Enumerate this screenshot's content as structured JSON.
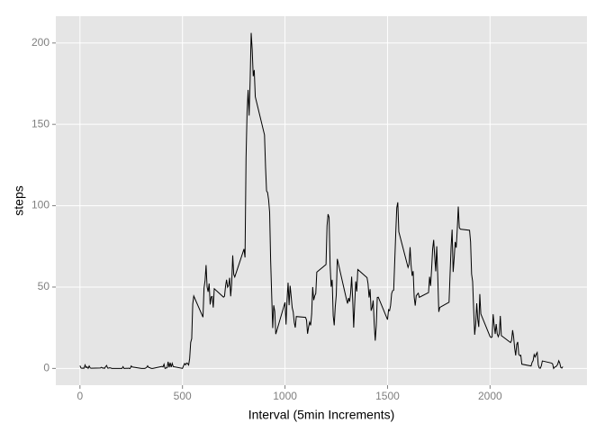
{
  "chart_data": {
    "type": "line",
    "x_label": "Interval (5min Increments)",
    "y_label": "steps",
    "x": [
      0,
      5,
      10,
      15,
      20,
      25,
      30,
      35,
      40,
      45,
      50,
      55,
      100,
      105,
      110,
      115,
      120,
      125,
      130,
      135,
      140,
      145,
      150,
      155,
      200,
      205,
      210,
      215,
      220,
      225,
      230,
      235,
      240,
      245,
      250,
      255,
      300,
      305,
      310,
      315,
      320,
      325,
      330,
      335,
      340,
      345,
      350,
      355,
      400,
      405,
      410,
      415,
      420,
      425,
      430,
      435,
      440,
      445,
      450,
      455,
      500,
      505,
      510,
      515,
      520,
      525,
      530,
      535,
      540,
      545,
      550,
      555,
      600,
      605,
      610,
      615,
      620,
      625,
      630,
      635,
      640,
      645,
      650,
      655,
      700,
      705,
      710,
      715,
      720,
      725,
      730,
      735,
      740,
      745,
      750,
      755,
      800,
      805,
      810,
      815,
      820,
      825,
      830,
      835,
      840,
      845,
      850,
      855,
      900,
      905,
      910,
      915,
      920,
      925,
      930,
      935,
      940,
      945,
      950,
      955,
      1000,
      1005,
      1010,
      1015,
      1020,
      1025,
      1030,
      1035,
      1040,
      1045,
      1050,
      1055,
      1100,
      1105,
      1110,
      1115,
      1120,
      1125,
      1130,
      1135,
      1140,
      1145,
      1150,
      1155,
      1200,
      1205,
      1210,
      1215,
      1220,
      1225,
      1230,
      1235,
      1240,
      1245,
      1250,
      1255,
      1300,
      1305,
      1310,
      1315,
      1320,
      1325,
      1330,
      1335,
      1340,
      1345,
      1350,
      1355,
      1400,
      1405,
      1410,
      1415,
      1420,
      1425,
      1430,
      1435,
      1440,
      1445,
      1450,
      1455,
      1500,
      1505,
      1510,
      1515,
      1520,
      1525,
      1530,
      1535,
      1540,
      1545,
      1550,
      1555,
      1600,
      1605,
      1610,
      1615,
      1620,
      1625,
      1630,
      1635,
      1640,
      1645,
      1650,
      1655,
      1700,
      1705,
      1710,
      1715,
      1720,
      1725,
      1730,
      1735,
      1740,
      1745,
      1750,
      1755,
      1800,
      1805,
      1810,
      1815,
      1820,
      1825,
      1830,
      1835,
      1840,
      1845,
      1850,
      1855,
      1900,
      1905,
      1910,
      1915,
      1920,
      1925,
      1930,
      1935,
      1940,
      1945,
      1950,
      1955,
      2000,
      2005,
      2010,
      2015,
      2020,
      2025,
      2030,
      2035,
      2040,
      2045,
      2050,
      2055,
      2100,
      2105,
      2110,
      2115,
      2120,
      2125,
      2130,
      2135,
      2140,
      2145,
      2150,
      2155,
      2200,
      2205,
      2210,
      2215,
      2220,
      2225,
      2230,
      2235,
      2240,
      2245,
      2250,
      2255,
      2300,
      2305,
      2310,
      2315,
      2320,
      2325,
      2330,
      2335,
      2340,
      2345,
      2350,
      2355
    ],
    "values": [
      1.7,
      0.3,
      0.1,
      0.2,
      0.1,
      2.1,
      0.5,
      0.9,
      0,
      1.5,
      0.3,
      0.1,
      0.3,
      0.7,
      0.2,
      0.3,
      0,
      1.1,
      1.8,
      0.2,
      0.2,
      0.4,
      0.3,
      0,
      0,
      0,
      1.1,
      0,
      0,
      0.1,
      0,
      0.2,
      0,
      0,
      1.5,
      0.9,
      0,
      0,
      0,
      0,
      0.2,
      0.6,
      1.6,
      0.6,
      0.5,
      0.1,
      0,
      0,
      1.2,
      0.9,
      2.6,
      0,
      0.3,
      0.4,
      4.1,
      0.7,
      3.5,
      0.8,
      3.1,
      1.1,
      0,
      1.6,
      3,
      2.2,
      3.3,
      3,
      2.1,
      6.1,
      16,
      18.3,
      39.5,
      44.5,
      31.5,
      49.3,
      53.8,
      63.5,
      50,
      47.1,
      52.2,
      39.3,
      44,
      44.2,
      37.4,
      49,
      43.8,
      44.4,
      50.5,
      54.5,
      49.9,
      51,
      55.7,
      44.3,
      52.3,
      69.5,
      57.8,
      56.2,
      73.4,
      68.2,
      129.4,
      157.5,
      171.2,
      155.4,
      177.3,
      206.2,
      195.9,
      179.6,
      183.4,
      167,
      143.5,
      124,
      109.1,
      108.1,
      103.7,
      96,
      66.2,
      45.2,
      24.8,
      38.8,
      35,
      21.1,
      40.6,
      27,
      42.4,
      52.7,
      38.9,
      50.8,
      44.3,
      37.4,
      34.7,
      28.3,
      25.1,
      31.9,
      31.4,
      29.7,
      21.3,
      25.5,
      28.4,
      26.5,
      33.4,
      50,
      42,
      44.6,
      46,
      59.2,
      63.9,
      87.7,
      94.8,
      92.8,
      63.4,
      50.2,
      54.5,
      32.4,
      26.5,
      37.7,
      45.1,
      67.3,
      42.3,
      39.9,
      43.3,
      41,
      46.2,
      56.4,
      42.8,
      25.1,
      40,
      53.5,
      47.3,
      60.8,
      55.8,
      52,
      43.6,
      48.7,
      35.5,
      37.5,
      41.8,
      27.5,
      17.1,
      26.1,
      43.6,
      43.8,
      30,
      36.1,
      35.5,
      38.8,
      46,
      47.8,
      48.1,
      65.3,
      82.9,
      98.7,
      102.1,
      84,
      62.1,
      64.1,
      74.5,
      63.2,
      56.9,
      59.8,
      43.9,
      38.6,
      44.7,
      45.5,
      46.2,
      43.7,
      46.6,
      56.3,
      50.7,
      61.2,
      73.4,
      79,
      68.9,
      59.7,
      75.1,
      56.5,
      34.8,
      37.5,
      40.7,
      58,
      74.7,
      85.3,
      59.3,
      67.8,
      77.7,
      74.2,
      85.3,
      99.5,
      86.6,
      85.6,
      84.9,
      77.8,
      58,
      53.4,
      36.3,
      20.7,
      27.4,
      40,
      30.2,
      25.5,
      45.7,
      33.5,
      19.6,
      19,
      19.3,
      33.3,
      26.8,
      21.2,
      27.3,
      21.3,
      19.5,
      21.3,
      32.3,
      20.2,
      15.9,
      17.2,
      23.5,
      19.2,
      12.5,
      8,
      14.7,
      16.3,
      8.7,
      7.8,
      8.1,
      2.6,
      1.5,
      3.7,
      4.8,
      8.5,
      7.1,
      8.7,
      9.8,
      2.2,
      0.3,
      0.1,
      1.6,
      4.6,
      3.3,
      2.8,
      0,
      0.8,
      1,
      1.6,
      2.6,
      4.7,
      3.3,
      0.6,
      0.2,
      1.1
    ],
    "color": "#000000",
    "xlim": [
      -117.75,
      2472.75
    ],
    "xticks": [
      0,
      500,
      1000,
      1500,
      2000
    ],
    "ylim": [
      -10.31,
      216.48
    ],
    "yticks": [
      0,
      50,
      100,
      150,
      200
    ],
    "grid": true
  }
}
